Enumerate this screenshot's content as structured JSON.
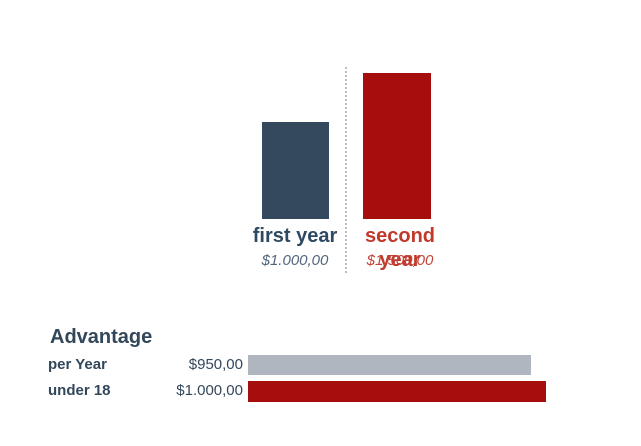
{
  "chart_data": [
    {
      "type": "bar",
      "orientation": "vertical",
      "title": "",
      "categories": [
        "first year",
        "second year"
      ],
      "values": [
        1000,
        1500
      ],
      "value_labels": [
        "$1.000,00",
        "$1.500,00"
      ],
      "bar_colors": [
        "#35495E",
        "#A60E0E"
      ],
      "category_label_colors": [
        "#2E4A62",
        "#C0392B"
      ],
      "value_label_colors": [
        "#52677C",
        "#C2453A"
      ],
      "ylim": [
        0,
        1500
      ],
      "grid": false,
      "legend_position": "none",
      "divider": "dotted vertical line between the two bars",
      "divider_color": "#B9BCC0"
    },
    {
      "type": "bar",
      "orientation": "horizontal",
      "title": "Advantage",
      "categories": [
        "per Year",
        "under 18"
      ],
      "values": [
        950,
        1000
      ],
      "value_labels": [
        "$950,00",
        "$1.000,00"
      ],
      "bar_colors": [
        "#AFB6BF",
        "#A60E0E"
      ],
      "title_color": "#33475B",
      "label_color": "#33475B",
      "xlim": [
        0,
        1000
      ],
      "grid": false,
      "legend_position": "none"
    }
  ]
}
